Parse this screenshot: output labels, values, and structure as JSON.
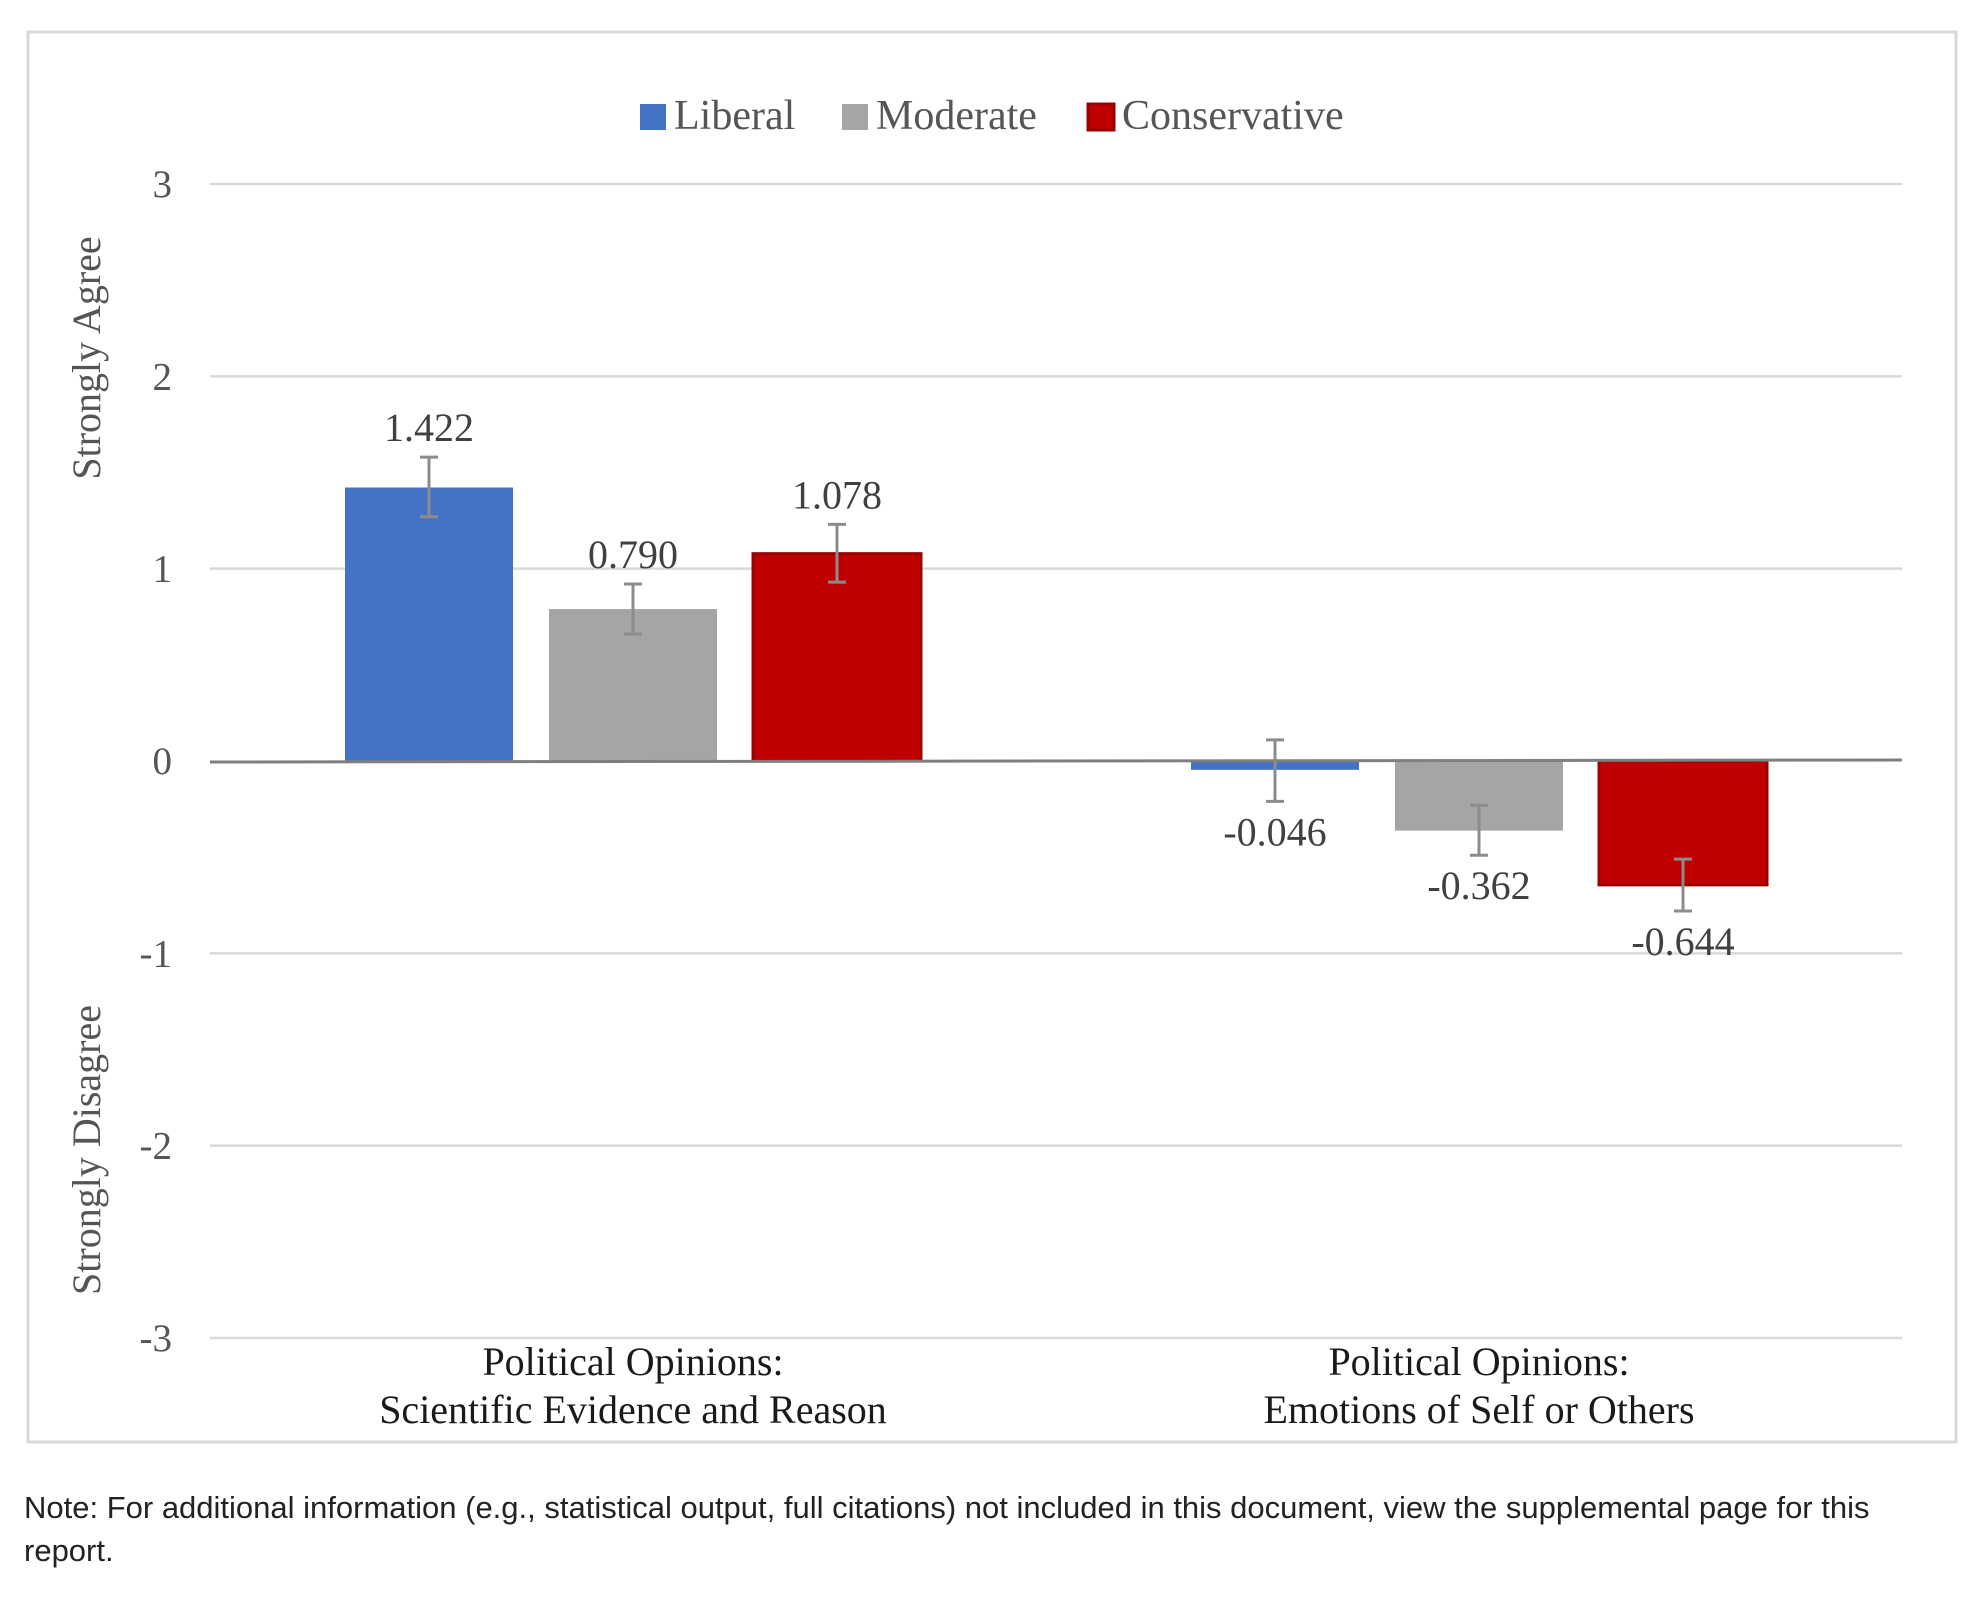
{
  "chart_data": {
    "type": "bar",
    "legend": {
      "position": "top",
      "entries": [
        {
          "name": "Liberal",
          "color": "#4472C4"
        },
        {
          "name": "Moderate",
          "color": "#A5A5A5"
        },
        {
          "name": "Conservative",
          "color": "#C00000"
        }
      ]
    },
    "categories": [
      [
        "Political Opinions:",
        "Scientific Evidence and Reason"
      ],
      [
        "Political Opinions:",
        "Emotions of Self or Others"
      ]
    ],
    "series": [
      {
        "name": "Liberal",
        "color": "#4472C4",
        "values": [
          1.422,
          -0.046
        ],
        "labels": [
          "1.422",
          "-0.046"
        ],
        "error": [
          [
            1.27,
            1.58
          ],
          [
            -0.21,
            0.11
          ]
        ]
      },
      {
        "name": "Moderate",
        "color": "#A5A5A5",
        "values": [
          0.79,
          -0.362
        ],
        "labels": [
          "0.790",
          "-0.362"
        ],
        "error": [
          [
            0.66,
            0.92
          ],
          [
            -0.49,
            -0.23
          ]
        ]
      },
      {
        "name": "Conservative",
        "color": "#C00000",
        "border_color": "#990000",
        "values": [
          1.078,
          -0.644
        ],
        "labels": [
          "1.078",
          "-0.644"
        ],
        "error": [
          [
            0.93,
            1.23
          ],
          [
            -0.78,
            -0.51
          ]
        ]
      }
    ],
    "ylim": [
      -3,
      3
    ],
    "yticks": [
      "3",
      "2",
      "1",
      "0",
      "-1",
      "-2",
      "-3"
    ],
    "ylabel_top": "Strongly Agree",
    "ylabel_bottom": "Strongly Disagree",
    "grid": true,
    "error_bar_color": "#8c8c8c",
    "grid_color": "#d9d9d9"
  },
  "note": {
    "text": "Note: For additional information (e.g., statistical output, full citations) not included in this document, view the supplemental page for this report."
  }
}
